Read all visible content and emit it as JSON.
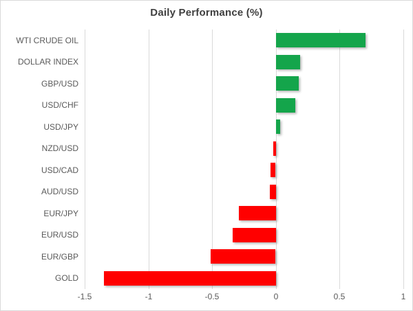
{
  "window": {
    "background_color": "#FFFFFF",
    "border_color": "#D9D9D9"
  },
  "chart_data": {
    "type": "bar",
    "orientation": "horizontal",
    "title": "Daily Performance (%)",
    "categories": [
      "WTI CRUDE OIL",
      "DOLLAR INDEX",
      "GBP/USD",
      "USD/CHF",
      "USD/JPY",
      "NZD/USD",
      "USD/CAD",
      "AUD/USD",
      "EUR/JPY",
      "EUR/USD",
      "EUR/GBP",
      "GOLD"
    ],
    "values": [
      0.7,
      0.19,
      0.18,
      0.15,
      0.03,
      -0.02,
      -0.04,
      -0.05,
      -0.29,
      -0.34,
      -0.51,
      -1.35
    ],
    "xlabel": "",
    "ylabel": "",
    "xlim": [
      -1.5,
      1.0
    ],
    "x_ticks": [
      -1.5,
      -1.0,
      -0.5,
      0.0,
      0.5,
      1.0
    ],
    "x_tick_labels": [
      "-1.5",
      "-1",
      "-0.5",
      "0",
      "0.5",
      "1"
    ],
    "grid": true,
    "legend": false,
    "positive_color": "#14A54B",
    "negative_color": "#FF0000",
    "gridline_color": "#D9D9D9",
    "title_color": "#3F3F3F",
    "category_label_color": "#595959",
    "tick_label_color": "#595959"
  }
}
